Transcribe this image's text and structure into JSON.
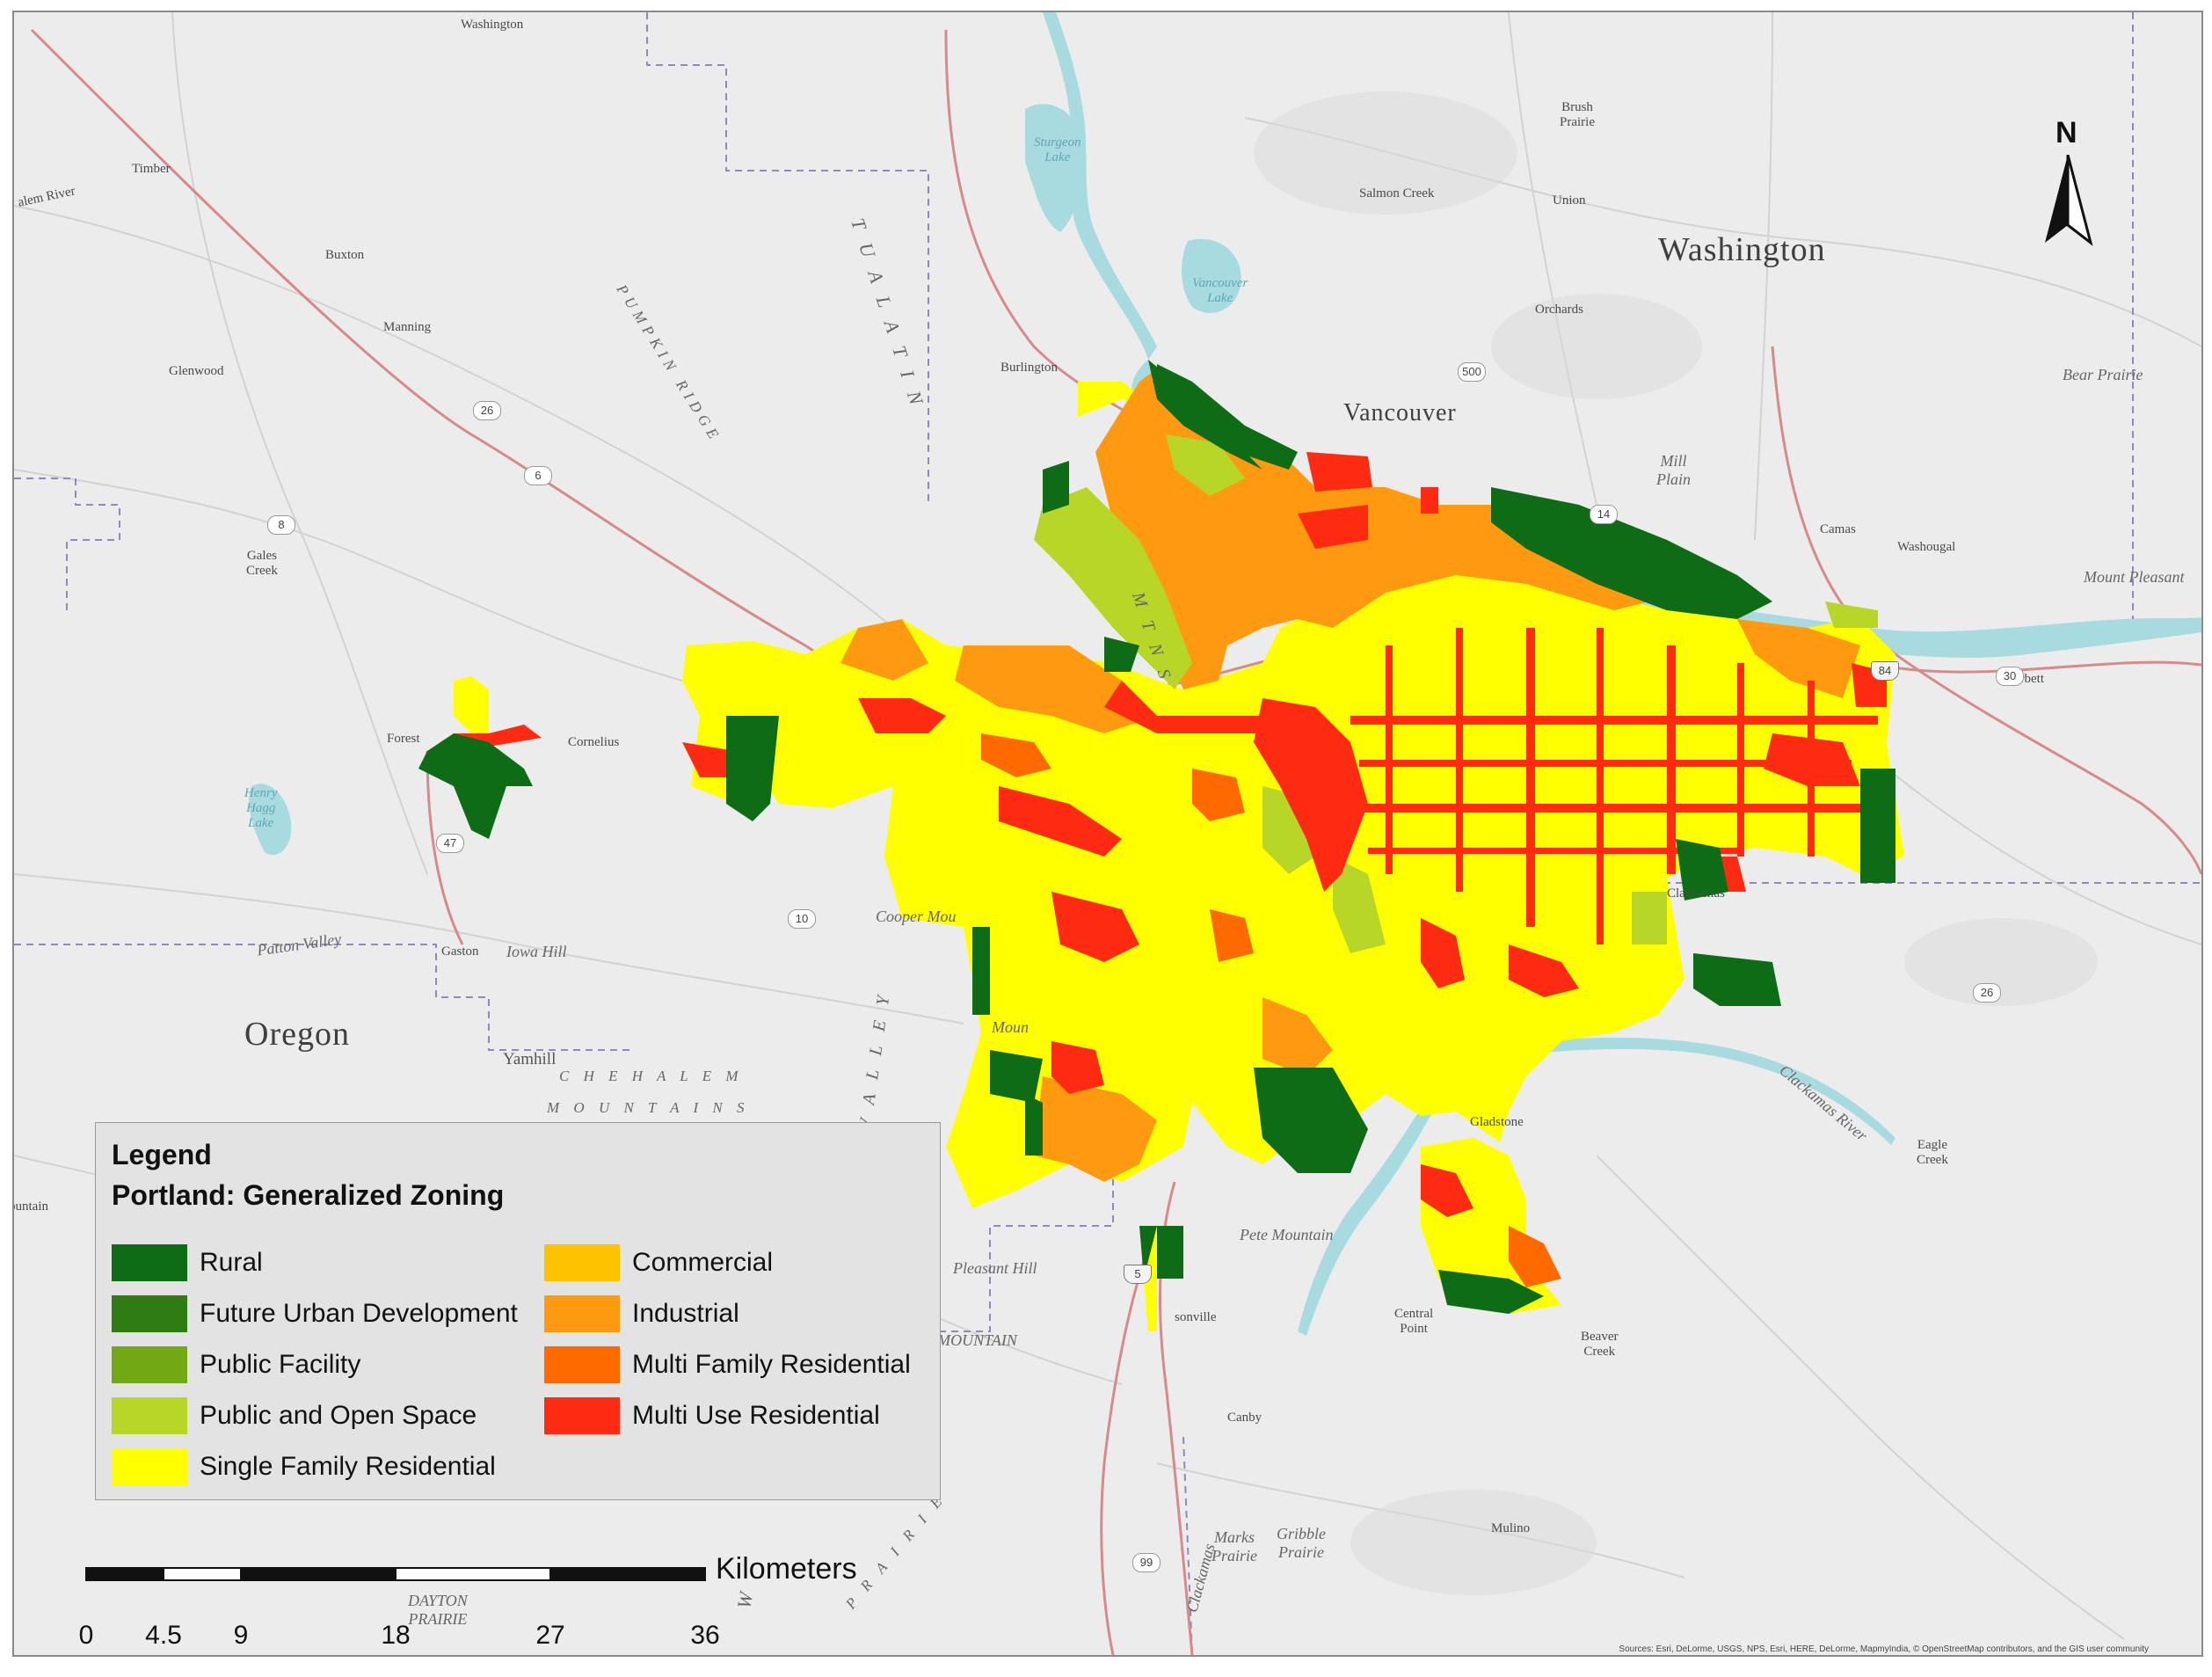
{
  "map": {
    "states": [
      "Washington",
      "Oregon"
    ],
    "top_state_label": "Washington",
    "cities": {
      "vancouver": "Vancouver"
    },
    "places": {
      "timber": "Timber",
      "buxton": "Buxton",
      "manning": "Manning",
      "glenwood": "Glenwood",
      "gales_creek": "Gales\nCreek",
      "forest": "Forest",
      "cornelius": "Cornelius",
      "gaston": "Gaston",
      "iowa_hill": "Iowa Hill",
      "yamhill": "Yamhill",
      "cooper_mountain": "Cooper Mou",
      "mount": "Moun",
      "pleasant_hill": "Pleasant Hill",
      "bull_mountain": "T MOUNTAIN",
      "pete_mountain": "Pete Mountain",
      "wilsonville": "sonville",
      "canby": "Canby",
      "central_point": "Central\nPoint",
      "gladstone": "Gladstone",
      "beaver_creek": "Beaver\nCreek",
      "eagle_creek": "Eagle\nCreek",
      "mulino": "Mulino",
      "marks_prairie": "Marks\nPrairie",
      "gribble_prairie": "Gribble\nPrairie",
      "dayton_prairie": "DAYTON\nPRAIRIE",
      "clackamas": "Clackamas",
      "brush_prairie": "Brush\nPrairie",
      "salmon_creek": "Salmon Creek",
      "union": "Union",
      "orchards": "Orchards",
      "bear_prairie": "Bear Prairie",
      "mill_plain": "Mill\nPlain",
      "camas": "Camas",
      "washougal": "Washougal",
      "mount_pleasant": "Mount Pleasant",
      "corbett": "Corbett",
      "burlington": "Burlington",
      "sauvie": "Sturgeon\nLake",
      "vancouver_lake": "Vancouver\nLake",
      "washington_small": "Washington",
      "patton_valley": "Patton Valley",
      "clackamas_river": "Clackamas River",
      "clackamas_vert": "Clackamas",
      "henry_hagg": "Henry\nHagg\nLake",
      "dalles": "alem River",
      "rkm": "ountain"
    },
    "ridges": {
      "pumpkin": "PUMPKIN RIDGE",
      "tualatin": "T U A L A T I N",
      "mtns": "M T N S",
      "chehalem": "C H E H A L E M",
      "chehalem2": "M O U N T A I N S",
      "valley": "V A L L E Y",
      "prairie": "P R A I R I E",
      "w": "W"
    },
    "highways": [
      "26",
      "6",
      "8",
      "47",
      "10",
      "500",
      "14",
      "84",
      "30",
      "26",
      "99",
      "5"
    ],
    "north_arrow": "N",
    "zone_colors": {
      "rural": "#0e6b16",
      "future": "#2f7d12",
      "public_facility": "#72a814",
      "open_space": "#b7d627",
      "single_family": "#ffff00",
      "commercial": "#ffc200",
      "industrial": "#ff9a10",
      "multi_family": "#ff6a00",
      "multi_use": "#ff2a12"
    },
    "credit": "Sources: Esri, DeLorme, USGS, NPS, Esri, HERE, DeLorme, MapmyIndia, © OpenStreetMap contributors, and the GIS user community"
  },
  "legend": {
    "title": "Legend",
    "subtitle": "Portland: Generalized Zoning",
    "items": [
      {
        "label": "Rural",
        "color": "#0e6b16"
      },
      {
        "label": "Future Urban Development",
        "color": "#2f7d12"
      },
      {
        "label": "Public Facility",
        "color": "#72a814"
      },
      {
        "label": "Public and Open Space",
        "color": "#b7d627"
      },
      {
        "label": "Single Family Residential",
        "color": "#ffff00"
      },
      {
        "label": "Commercial",
        "color": "#ffc200"
      },
      {
        "label": "Industrial",
        "color": "#ff9a10"
      },
      {
        "label": "Multi Family Residential",
        "color": "#ff6a00"
      },
      {
        "label": "Multi Use Residential",
        "color": "#ff2a12"
      }
    ]
  },
  "scalebar": {
    "unit": "Kilometers",
    "ticks": [
      "0",
      "4.5",
      "9",
      "18",
      "27",
      "36"
    ]
  }
}
